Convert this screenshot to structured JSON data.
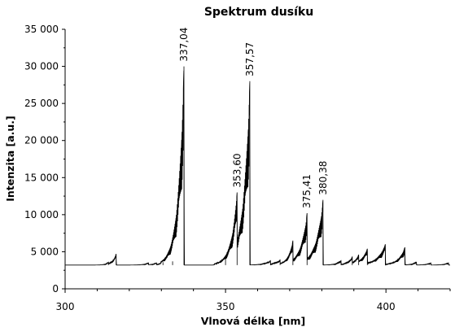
{
  "chart_data": {
    "type": "line",
    "title": "Spektrum dusíku",
    "xlabel": "Vlnová délka [nm]",
    "ylabel": "Intenzita [a.u.]",
    "xlim": [
      300,
      420
    ],
    "ylim": [
      0,
      35000
    ],
    "xticks": [
      300,
      350,
      400
    ],
    "xtick_labels": [
      "300",
      "350",
      "400"
    ],
    "yticks": [
      0,
      5000,
      10000,
      15000,
      20000,
      25000,
      30000,
      35000
    ],
    "ytick_labels": [
      "0",
      "5 000",
      "10 000",
      "15 000",
      "20 000",
      "25 000",
      "30 000",
      "35 000"
    ],
    "grid": false,
    "baseline": 3200,
    "series": [
      {
        "color": "#000000",
        "bands": [
          {
            "head": 313.5,
            "peak": 3600,
            "width": 1.0
          },
          {
            "head": 315.9,
            "peak": 4700,
            "width": 1.2
          },
          {
            "head": 326.0,
            "peak": 3500,
            "width": 1.5
          },
          {
            "head": 328.5,
            "peak": 3500,
            "width": 1.5
          },
          {
            "head": 330.5,
            "peak": 3600,
            "width": 1.5
          },
          {
            "head": 333.5,
            "peak": 3700,
            "width": 1.5
          },
          {
            "head": 337.04,
            "peak": 30000,
            "width": 1.8
          },
          {
            "head": 350.0,
            "peak": 4200,
            "width": 1.0
          },
          {
            "head": 353.6,
            "peak": 13000,
            "width": 1.8
          },
          {
            "head": 357.57,
            "peak": 28000,
            "width": 2.0
          },
          {
            "head": 364.0,
            "peak": 3800,
            "width": 2.0
          },
          {
            "head": 367.0,
            "peak": 3900,
            "width": 2.0
          },
          {
            "head": 371.0,
            "peak": 6500,
            "width": 1.5
          },
          {
            "head": 375.41,
            "peak": 10200,
            "width": 2.0
          },
          {
            "head": 380.38,
            "peak": 12000,
            "width": 2.2
          },
          {
            "head": 386.0,
            "peak": 3800,
            "width": 1.5
          },
          {
            "head": 389.5,
            "peak": 4300,
            "width": 1.5
          },
          {
            "head": 391.5,
            "peak": 4600,
            "width": 1.5
          },
          {
            "head": 394.2,
            "peak": 5400,
            "width": 2.0
          },
          {
            "head": 399.8,
            "peak": 6000,
            "width": 2.5
          },
          {
            "head": 405.9,
            "peak": 5600,
            "width": 2.0
          },
          {
            "head": 409.5,
            "peak": 3600,
            "width": 1.5
          },
          {
            "head": 414.0,
            "peak": 3500,
            "width": 1.5
          },
          {
            "head": 419.5,
            "peak": 3500,
            "width": 1.5
          }
        ]
      }
    ],
    "annotations": [
      {
        "text": "337,04",
        "x": 337.04,
        "y": 30000
      },
      {
        "text": "353,60",
        "x": 353.6,
        "y": 13000
      },
      {
        "text": "357,57",
        "x": 357.57,
        "y": 28000
      },
      {
        "text": "375,41",
        "x": 375.41,
        "y": 10200
      },
      {
        "text": "380,38",
        "x": 380.38,
        "y": 12000
      }
    ]
  }
}
